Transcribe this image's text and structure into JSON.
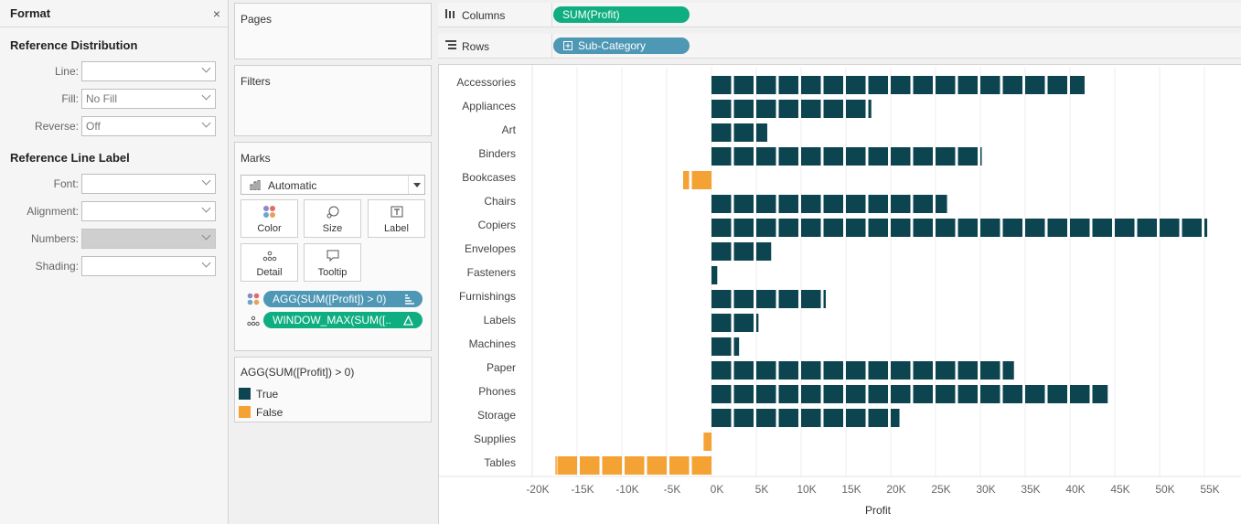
{
  "format_pane": {
    "title": "Format",
    "close": "×",
    "ref_dist": {
      "title": "Reference Distribution",
      "rows": [
        {
          "label": "Line:",
          "value": ""
        },
        {
          "label": "Fill:",
          "value": "No Fill"
        },
        {
          "label": "Reverse:",
          "value": "Off"
        }
      ]
    },
    "ref_label": {
      "title": "Reference Line Label",
      "rows": [
        {
          "label": "Font:",
          "value": ""
        },
        {
          "label": "Alignment:",
          "value": ""
        },
        {
          "label": "Numbers:",
          "value": ""
        },
        {
          "label": "Shading:",
          "value": ""
        }
      ]
    }
  },
  "pages": {
    "title": "Pages"
  },
  "filters": {
    "title": "Filters"
  },
  "marks": {
    "title": "Marks",
    "type": "Automatic",
    "buttons": {
      "color": "Color",
      "size": "Size",
      "label": "Label",
      "detail": "Detail",
      "tooltip": "Tooltip"
    },
    "pill_color": "AGG(SUM([Profit]) > 0)",
    "pill_detail": "WINDOW_MAX(SUM([.."
  },
  "legend": {
    "title": "AGG(SUM([Profit]) > 0)",
    "items": [
      {
        "label": "True",
        "color": "#0c4450"
      },
      {
        "label": "False",
        "color": "#f4a234"
      }
    ]
  },
  "shelves": {
    "columns": {
      "label": "Columns",
      "pill": "SUM(Profit)"
    },
    "rows": {
      "label": "Rows",
      "pill": "Sub-Category"
    }
  },
  "colors": {
    "positive": "#0c4450",
    "negative": "#f4a234",
    "pill_green": "#0fae80",
    "pill_blue": "#4e97b5"
  },
  "chart_data": {
    "type": "bar",
    "orientation": "horizontal",
    "xlabel": "Profit",
    "xlim": [
      -20000,
      55000
    ],
    "tick_step": 5000,
    "tick_labels": [
      "-20K",
      "-15K",
      "-10K",
      "-5K",
      "0K",
      "5K",
      "10K",
      "15K",
      "20K",
      "25K",
      "30K",
      "35K",
      "40K",
      "45K",
      "50K",
      "55K"
    ],
    "block_size": 2500,
    "categories": [
      "Accessories",
      "Appliances",
      "Art",
      "Binders",
      "Bookcases",
      "Chairs",
      "Copiers",
      "Envelopes",
      "Fasteners",
      "Furnishings",
      "Labels",
      "Machines",
      "Paper",
      "Phones",
      "Storage",
      "Supplies",
      "Tables"
    ],
    "values": [
      41937,
      18138,
      6528,
      30222,
      -3473,
      26590,
      55618,
      6964,
      950,
      13059,
      5546,
      3385,
      34054,
      44516,
      21279,
      -1189,
      -17725
    ]
  }
}
